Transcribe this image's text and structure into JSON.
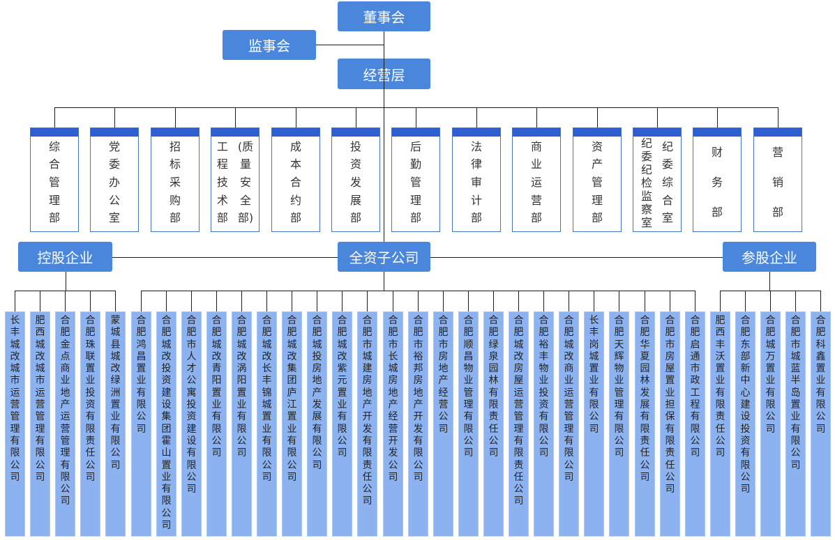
{
  "board": "董事会",
  "supervisors": "监事会",
  "management": "经营层",
  "departments": [
    {
      "columns": [
        "综合管理部"
      ]
    },
    {
      "columns": [
        "党委办公室"
      ]
    },
    {
      "columns": [
        "招标采购部"
      ]
    },
    {
      "columns": [
        "工程技术部",
        "(质量安全部)"
      ]
    },
    {
      "columns": [
        "成本合约部"
      ]
    },
    {
      "columns": [
        "投资发展部"
      ]
    },
    {
      "columns": [
        "后勤管理部"
      ]
    },
    {
      "columns": [
        "法律审计部"
      ]
    },
    {
      "columns": [
        "商业运营部"
      ]
    },
    {
      "columns": [
        "资产管理部"
      ]
    },
    {
      "columns": [
        "纪委纪检监察室",
        "纪委综合室"
      ]
    },
    {
      "columns": [
        "财务部"
      ]
    },
    {
      "columns": [
        "营销部"
      ]
    }
  ],
  "groups": {
    "holding": {
      "label": "控股企业",
      "companies": [
        "长丰城改城市运营管理有限公司",
        "肥西城改城市运营管理有限公司",
        "合肥金点商业地产运营管理有限公司",
        "合肥珠联置业投资有限责任公司",
        "蒙城县城改绿洲置业有限公司"
      ]
    },
    "wholly_owned": {
      "label": "全资子公司",
      "companies": [
        "合肥鸿昌置业有限公司",
        "合肥城改投资建设集团霍山置业有限公司",
        "合肥市人才公寓投资建设有限公司",
        "合肥城改青阳置业有限公司",
        "合肥城改涡阳置业有限公司",
        "合肥城改长丰锦城置业有限公司",
        "合肥城改集团庐江置业有限公司",
        "合肥城投房地产发展有限公司",
        "合肥城改紫元置业有限公司",
        "合肥市城建房地产开发有限责任公司",
        "合肥市长城房地产经营开发公司",
        "合肥市裕邦房地产开发有限公司",
        "合肥市房地产经营公司",
        "合肥顺昌物业管理有限公司",
        "合肥绿泉园林有限责任公司",
        "合肥城改房屋运营管理有限责任公司",
        "合肥裕丰物业投资有限公司",
        "合肥城改商业运营管理有限公司",
        "长丰岗城置业有限公司",
        "合肥天辉物业管理有限公司",
        "合肥华夏园林发展有限责任公司",
        "合肥市房屋置业担保有限责任公司",
        "合肥启通市政工程有限公司"
      ]
    },
    "minority": {
      "label": "参股企业",
      "companies": [
        "肥西丰沃置业有限责任公司",
        "合肥东部新中心建设投资有限公司",
        "合肥城万置业有限公司",
        "合肥市城蓝半岛置业有限公司",
        "合肥科鑫置业有限公司"
      ]
    }
  },
  "colors": {
    "top_box": "#4a86dc",
    "dept_header": "#2e5fd0",
    "dept_border": "#4472c4",
    "company_box": "#8cb2f0"
  }
}
